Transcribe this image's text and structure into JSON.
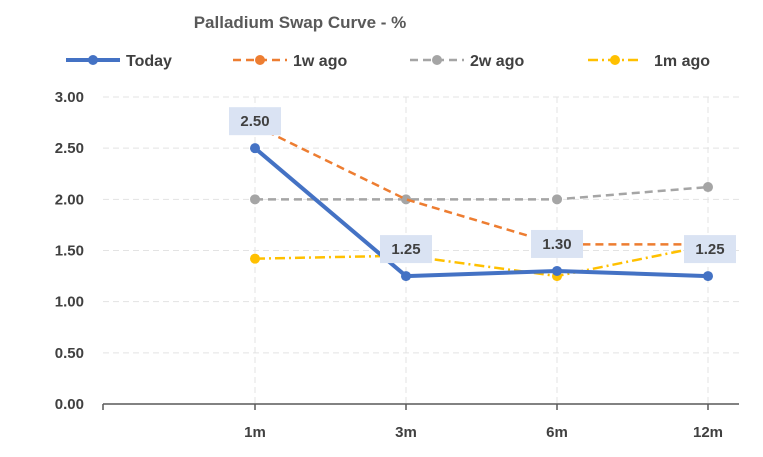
{
  "chart_data": {
    "type": "line",
    "title": "Palladium Swap Curve - %",
    "categories": [
      "1m",
      "3m",
      "6m",
      "12m"
    ],
    "ylim": [
      0,
      3
    ],
    "yticks": [
      "0.00",
      "0.50",
      "1.00",
      "1.50",
      "2.00",
      "2.50",
      "3.00"
    ],
    "grid": "dashed-light",
    "legend_position": "top",
    "series": [
      {
        "name": "Today",
        "values": [
          2.5,
          1.25,
          1.3,
          1.25
        ],
        "color": "#4472C4",
        "dash": "solid",
        "labels": [
          "2.50",
          "1.25",
          "1.30",
          "1.25"
        ]
      },
      {
        "name": "1w ago",
        "values": [
          2.72,
          2.0,
          1.56,
          1.56
        ],
        "color": "#ED7D31",
        "dash": "dash",
        "markers": [
          false,
          false,
          false,
          false
        ]
      },
      {
        "name": "2w ago",
        "values": [
          2.0,
          2.0,
          2.0,
          2.12
        ],
        "color": "#A5A5A5",
        "dash": "dash",
        "markers": [
          true,
          true,
          true,
          true
        ]
      },
      {
        "name": "1m ago",
        "values": [
          1.42,
          1.45,
          1.25,
          1.55
        ],
        "color": "#FFC000",
        "dash": "dashdot",
        "markers": [
          true,
          false,
          true,
          false
        ]
      }
    ]
  }
}
